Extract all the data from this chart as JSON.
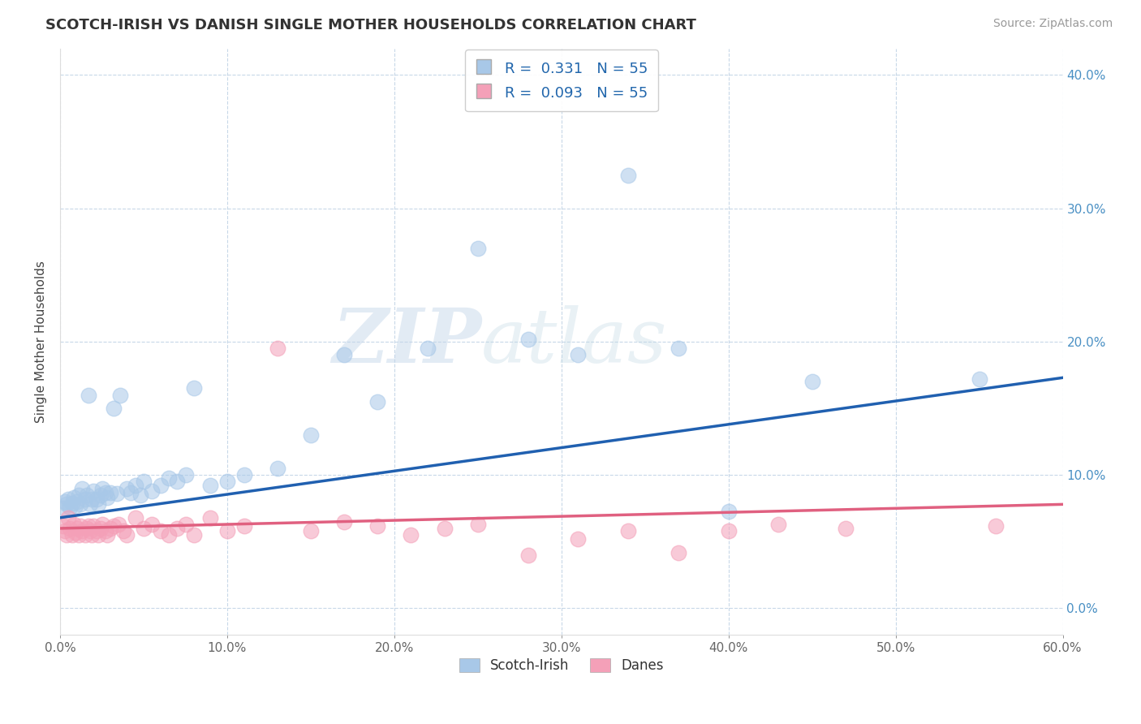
{
  "title": "SCOTCH-IRISH VS DANISH SINGLE MOTHER HOUSEHOLDS CORRELATION CHART",
  "source": "Source: ZipAtlas.com",
  "ylabel": "Single Mother Households",
  "xlim": [
    0.0,
    0.6
  ],
  "ylim": [
    -0.02,
    0.42
  ],
  "xticks": [
    0.0,
    0.1,
    0.2,
    0.3,
    0.4,
    0.5,
    0.6
  ],
  "xtick_labels": [
    "0.0%",
    "10.0%",
    "20.0%",
    "30.0%",
    "40.0%",
    "50.0%",
    "60.0%"
  ],
  "yticks": [
    0.0,
    0.1,
    0.2,
    0.3,
    0.4
  ],
  "ytick_labels": [
    "0.0%",
    "10.0%",
    "20.0%",
    "30.0%",
    "40.0%"
  ],
  "R_blue": 0.331,
  "R_pink": 0.093,
  "N_blue": 55,
  "N_pink": 55,
  "blue_color": "#a8c8e8",
  "pink_color": "#f4a0b8",
  "line_blue": "#2060b0",
  "line_pink": "#e06080",
  "legend_blue": "Scotch-Irish",
  "legend_pink": "Danes",
  "blue_line_start_y": 0.068,
  "blue_line_end_y": 0.173,
  "pink_line_start_y": 0.06,
  "pink_line_end_y": 0.078,
  "scotch_irish_x": [
    0.002,
    0.003,
    0.004,
    0.005,
    0.006,
    0.007,
    0.008,
    0.009,
    0.01,
    0.011,
    0.012,
    0.013,
    0.015,
    0.016,
    0.017,
    0.018,
    0.019,
    0.02,
    0.022,
    0.023,
    0.024,
    0.025,
    0.027,
    0.028,
    0.03,
    0.032,
    0.034,
    0.036,
    0.04,
    0.042,
    0.045,
    0.048,
    0.05,
    0.055,
    0.06,
    0.065,
    0.07,
    0.075,
    0.08,
    0.09,
    0.1,
    0.11,
    0.13,
    0.15,
    0.17,
    0.19,
    0.22,
    0.25,
    0.28,
    0.31,
    0.34,
    0.37,
    0.4,
    0.45,
    0.55
  ],
  "scotch_irish_y": [
    0.075,
    0.08,
    0.078,
    0.082,
    0.076,
    0.079,
    0.083,
    0.077,
    0.08,
    0.085,
    0.078,
    0.09,
    0.082,
    0.085,
    0.16,
    0.078,
    0.082,
    0.088,
    0.082,
    0.078,
    0.085,
    0.09,
    0.087,
    0.083,
    0.087,
    0.15,
    0.086,
    0.16,
    0.09,
    0.087,
    0.092,
    0.085,
    0.095,
    0.088,
    0.092,
    0.098,
    0.095,
    0.1,
    0.165,
    0.092,
    0.095,
    0.1,
    0.105,
    0.13,
    0.19,
    0.155,
    0.195,
    0.27,
    0.202,
    0.19,
    0.325,
    0.195,
    0.073,
    0.17,
    0.172
  ],
  "danes_x": [
    0.002,
    0.003,
    0.004,
    0.005,
    0.006,
    0.007,
    0.008,
    0.009,
    0.01,
    0.011,
    0.012,
    0.013,
    0.015,
    0.016,
    0.017,
    0.018,
    0.019,
    0.02,
    0.022,
    0.023,
    0.024,
    0.025,
    0.027,
    0.028,
    0.03,
    0.032,
    0.035,
    0.038,
    0.04,
    0.045,
    0.05,
    0.055,
    0.06,
    0.065,
    0.07,
    0.075,
    0.08,
    0.09,
    0.1,
    0.11,
    0.13,
    0.15,
    0.17,
    0.19,
    0.21,
    0.23,
    0.25,
    0.28,
    0.31,
    0.34,
    0.37,
    0.4,
    0.43,
    0.47,
    0.56
  ],
  "danes_y": [
    0.062,
    0.058,
    0.055,
    0.068,
    0.06,
    0.055,
    0.063,
    0.057,
    0.06,
    0.055,
    0.062,
    0.058,
    0.055,
    0.06,
    0.062,
    0.058,
    0.055,
    0.062,
    0.058,
    0.055,
    0.06,
    0.063,
    0.058,
    0.055,
    0.06,
    0.062,
    0.063,
    0.058,
    0.055,
    0.068,
    0.06,
    0.063,
    0.058,
    0.055,
    0.06,
    0.063,
    0.055,
    0.068,
    0.058,
    0.062,
    0.195,
    0.058,
    0.065,
    0.062,
    0.055,
    0.06,
    0.063,
    0.04,
    0.052,
    0.058,
    0.042,
    0.058,
    0.063,
    0.06,
    0.062
  ],
  "title_fontsize": 13,
  "axis_fontsize": 11,
  "tick_fontsize": 11,
  "source_fontsize": 10,
  "background_color": "#ffffff",
  "grid_color": "#c8d8e8",
  "ytick_color": "#4a90c4",
  "xtick_color": "#666666"
}
